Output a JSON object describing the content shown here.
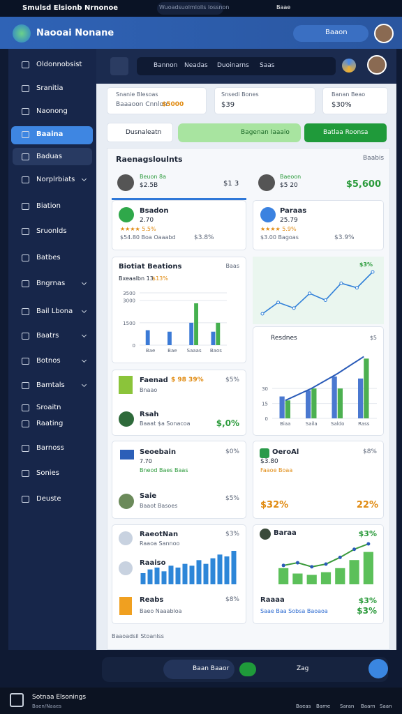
{
  "topbar": {
    "title": "Smulsd Elsionb Nrnonoe",
    "search": "Wuoadsuolmlolls lossnon",
    "user": "Baae"
  },
  "header": {
    "title": "Naooai Nonane",
    "button": "Baaon"
  },
  "sidebar": {
    "items": [
      "Oldonnobsist",
      "Sranitia",
      "Naonong",
      "Baaina",
      "Baduas",
      "Norplrbiats",
      "Biation",
      "Sruonlds",
      "Batbes",
      "Bngrnas",
      "Bail Lbona",
      "Baatrs",
      "Botnos",
      "Bamtals",
      "Sroaitn",
      "Raating",
      "Barnoss",
      "Sonies",
      "Deuste"
    ]
  },
  "toolbar": {
    "tabs": [
      "Bannon",
      "Neadas",
      "Duoinarns",
      "Saas"
    ]
  },
  "stats": [
    {
      "title": "Snanie Blesoas",
      "value": "Baaaoon Cnnlon",
      "accent": "$5000"
    },
    {
      "title": "Snsedi Bones",
      "value": "$39"
    },
    {
      "title": "Banan Beao",
      "value": "$30%"
    }
  ],
  "actions": {
    "check": "Dusnaleatn",
    "pill": "Bagenan Iaaaio",
    "button": "Batlaa Roonsa"
  },
  "panel": {
    "title": "Raenagsloulnts",
    "link": "Baabis",
    "people": [
      {
        "name": "Beuon 8a",
        "value": "$2.5B",
        "aside": "$1 3"
      },
      {
        "name": "Baeoon",
        "value": "$5 20",
        "aside": "$5,600"
      }
    ]
  },
  "products": [
    {
      "name": "Bsadon",
      "price": "2.70",
      "rating": "★★★★ 5.5%",
      "foot": "$54.80 Boa Oaaabd",
      "pct": "$3.8%"
    },
    {
      "name": "Paraas",
      "price": "25.79",
      "rating": "★★★★ 5.9%",
      "foot": "$3.00 Bagoas",
      "pct": "$3.9%"
    }
  ],
  "cards": [
    {
      "title": "Faenad",
      "value": "$ 98 39%",
      "sub": "Bnaao",
      "pct": "$5%",
      "name": "Rsah",
      "note": "Baaat $a Sonacoa",
      "amount": "$,0%"
    },
    {
      "title": "Seoebain",
      "value": "7.70",
      "sub": "Bneod Baes Baas",
      "pct": "$0%",
      "name": "Saie",
      "note": "Baaot Basoes",
      "amount": "$5%"
    },
    {
      "title": "OeroAl",
      "value": "$3.80",
      "sub": "Faaoe Boaa",
      "pct": "$8%",
      "amount": "$32%",
      "aside": "22%"
    },
    {
      "title": "RaeotNan",
      "value": "Raaoa Sannoo",
      "pct": "$3%",
      "name": "Raaiso",
      "name2": "Reabs",
      "note": "Baeo Naaabloa",
      "pct2": "$8%"
    },
    {
      "title": "Baraa",
      "pct": "$3%",
      "name": "Raaaa",
      "note": "Saae Baa Sobsa Baoaoa",
      "pct2": "$3%",
      "amount": "$3%"
    }
  ],
  "footer_note": "Baaoadsil Stoanlss",
  "bottombar": {
    "search": "Baan Baaor",
    "zoom": "Zag"
  },
  "taskbar": {
    "title": "Sotnaa Elsonings",
    "sub": "Baen/Naaes",
    "icons": [
      "Baeas",
      "Bame",
      "Saran",
      "Baarn",
      "Saan"
    ]
  },
  "charts": [
    {
      "type": "bar",
      "title": "Biotiat Beations",
      "subtitle": "Bxeaalbn 13",
      "note": "$13%",
      "link": "Baas",
      "categories": [
        "Bae",
        "Bae",
        "Saaas",
        "Baos"
      ],
      "series": [
        {
          "color": "#3b7ad6",
          "values": [
            1000,
            900,
            1500,
            900
          ]
        },
        {
          "color": "#45b04f",
          "values": [
            0,
            0,
            2800,
            1500
          ]
        }
      ],
      "ylim": [
        0,
        3500
      ],
      "yticks": [
        0,
        1500,
        3000,
        3500
      ]
    },
    {
      "type": "line",
      "label": "$3%",
      "color": "#2f7fd8",
      "values": [
        15,
        25,
        20,
        33,
        27,
        42,
        38,
        52
      ]
    },
    {
      "type": "bar",
      "title": "Resdnes",
      "link": "$5",
      "categories": [
        "Biaa",
        "Saila",
        "Saldo",
        "Rass"
      ],
      "series": [
        {
          "color": "#4a78d0",
          "values": [
            22,
            28,
            42,
            40
          ]
        },
        {
          "color": "#4cb050",
          "values": [
            18,
            30,
            30,
            60
          ]
        }
      ],
      "line": [
        18,
        30,
        45,
        62
      ],
      "ylim": [
        0,
        70
      ],
      "yticks": [
        0,
        15,
        30
      ]
    },
    {
      "type": "bar",
      "color": "#2d86d8",
      "values": [
        6,
        8,
        9,
        7,
        10,
        9,
        11,
        10,
        13,
        11,
        14,
        16,
        15,
        18
      ]
    },
    {
      "type": "bar",
      "color": "#5cc05a",
      "values": [
        12,
        8,
        7,
        9,
        12,
        18,
        24
      ],
      "line": [
        14,
        16,
        13,
        15,
        20,
        26,
        30
      ]
    }
  ]
}
